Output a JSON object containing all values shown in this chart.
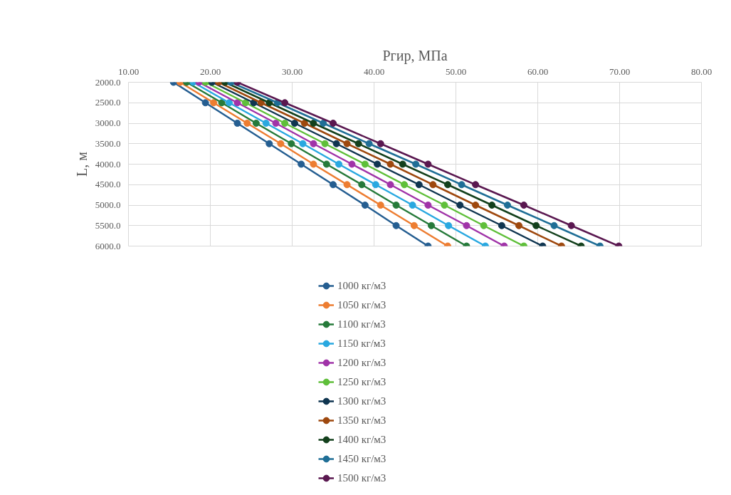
{
  "chart_data": {
    "type": "line",
    "xlabel": "Ргир, МПа",
    "ylabel": "L, м",
    "xlim": [
      10,
      80
    ],
    "xticks": [
      {
        "value": 10,
        "label": "10.00"
      },
      {
        "value": 20,
        "label": "20.00"
      },
      {
        "value": 30,
        "label": "30.00"
      },
      {
        "value": 40,
        "label": "40.00"
      },
      {
        "value": 50,
        "label": "50.00"
      },
      {
        "value": 60,
        "label": "60.00"
      },
      {
        "value": 70,
        "label": "70.00"
      },
      {
        "value": 80,
        "label": "80.00"
      }
    ],
    "ylim": [
      6000,
      2000
    ],
    "yticks": [
      {
        "value": 2000,
        "label": "2000.0"
      },
      {
        "value": 2500,
        "label": "2500.0"
      },
      {
        "value": 3000,
        "label": "3000.0"
      },
      {
        "value": 3500,
        "label": "3500.0"
      },
      {
        "value": 4000,
        "label": "4000.0"
      },
      {
        "value": 4500,
        "label": "4500.0"
      },
      {
        "value": 5000,
        "label": "5000.0"
      },
      {
        "value": 5500,
        "label": "5500.0"
      },
      {
        "value": 6000,
        "label": "6000.0"
      }
    ],
    "grid": true,
    "legend": "bottom",
    "marker": "circle",
    "line_style": "solid",
    "series": [
      {
        "name": "1000 кг/м3",
        "color": "#255e91",
        "x": [
          15.5,
          19.4,
          23.3,
          27.2,
          31.1,
          35.0,
          38.9,
          42.7,
          46.6
        ],
        "values": [
          2000,
          2500,
          3000,
          3500,
          4000,
          4500,
          5000,
          5500,
          6000
        ]
      },
      {
        "name": "1050 кг/м3",
        "color": "#ed7d31",
        "x": [
          16.3,
          20.4,
          24.5,
          28.6,
          32.6,
          36.7,
          40.8,
          44.9,
          49.0
        ],
        "values": [
          2000,
          2500,
          3000,
          3500,
          4000,
          4500,
          5000,
          5500,
          6000
        ]
      },
      {
        "name": "1100 кг/м3",
        "color": "#267a3a",
        "x": [
          17.1,
          21.4,
          25.6,
          29.9,
          34.2,
          38.5,
          42.7,
          47.0,
          51.3
        ],
        "values": [
          2000,
          2500,
          3000,
          3500,
          4000,
          4500,
          5000,
          5500,
          6000
        ]
      },
      {
        "name": "1150 кг/м3",
        "color": "#29a8e0",
        "x": [
          17.9,
          22.3,
          26.8,
          31.3,
          35.7,
          40.2,
          44.7,
          49.1,
          53.6
        ],
        "values": [
          2000,
          2500,
          3000,
          3500,
          4000,
          4500,
          5000,
          5500,
          6000
        ]
      },
      {
        "name": "1200 кг/м3",
        "color": "#a033a8",
        "x": [
          18.6,
          23.3,
          28.0,
          32.6,
          37.3,
          42.0,
          46.6,
          51.3,
          55.9
        ],
        "values": [
          2000,
          2500,
          3000,
          3500,
          4000,
          4500,
          5000,
          5500,
          6000
        ]
      },
      {
        "name": "1250 кг/м3",
        "color": "#5fbf3a",
        "x": [
          19.4,
          24.3,
          29.1,
          34.0,
          38.9,
          43.7,
          48.6,
          53.4,
          58.3
        ],
        "values": [
          2000,
          2500,
          3000,
          3500,
          4000,
          4500,
          5000,
          5500,
          6000
        ]
      },
      {
        "name": "1300 кг/м3",
        "color": "#0f3550",
        "x": [
          20.2,
          25.3,
          30.3,
          35.4,
          40.4,
          45.5,
          50.5,
          55.6,
          60.6
        ],
        "values": [
          2000,
          2500,
          3000,
          3500,
          4000,
          4500,
          5000,
          5500,
          6000
        ]
      },
      {
        "name": "1350 кг/м3",
        "color": "#9e480e",
        "x": [
          21.0,
          26.2,
          31.5,
          36.7,
          42.0,
          47.2,
          52.4,
          57.7,
          62.9
        ],
        "values": [
          2000,
          2500,
          3000,
          3500,
          4000,
          4500,
          5000,
          5500,
          6000
        ]
      },
      {
        "name": "1400 кг/м3",
        "color": "#13401c",
        "x": [
          21.8,
          27.2,
          32.6,
          38.1,
          43.5,
          49.0,
          54.4,
          59.8,
          65.3
        ],
        "values": [
          2000,
          2500,
          3000,
          3500,
          4000,
          4500,
          5000,
          5500,
          6000
        ]
      },
      {
        "name": "1450 кг/м3",
        "color": "#1f6e96",
        "x": [
          22.5,
          28.2,
          33.8,
          39.4,
          45.1,
          50.7,
          56.3,
          62.0,
          67.6
        ],
        "values": [
          2000,
          2500,
          3000,
          3500,
          4000,
          4500,
          5000,
          5500,
          6000
        ]
      },
      {
        "name": "1500 кг/м3",
        "color": "#5a1850",
        "x": [
          23.3,
          29.1,
          35.0,
          40.8,
          46.6,
          52.4,
          58.3,
          64.1,
          69.9
        ],
        "values": [
          2000,
          2500,
          3000,
          3500,
          4000,
          4500,
          5000,
          5500,
          6000
        ]
      }
    ]
  }
}
